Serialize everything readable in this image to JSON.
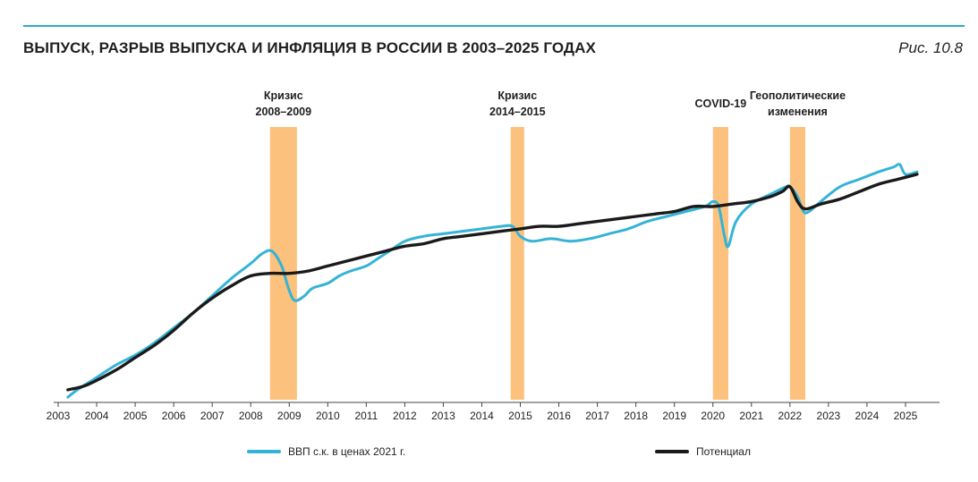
{
  "header": {
    "title": "ВЫПУСК, РАЗРЫВ ВЫПУСКА И ИНФЛЯЦИЯ В РОССИИ В 2003–2025 ГОДАХ",
    "figure_label": "Рис. 10.8"
  },
  "colors": {
    "gdp": "#35b3d6",
    "potential": "#1a1a1a",
    "shade": "#fcc27d",
    "axis": "#444444",
    "rule": "#2fa9c4"
  },
  "legend": {
    "gdp_label": "ВВП с.к. в ценах 2021 г.",
    "potential_label": "Потенциал"
  },
  "chart_data": {
    "type": "line",
    "title": "ВЫПУСК, РАЗРЫВ ВЫПУСКА И ИНФЛЯЦИЯ В РОССИИ В 2003–2025 ГОДАХ",
    "xlabel": "",
    "ylabel": "",
    "xlim": [
      2003,
      2026
    ],
    "ylim": [
      0,
      100
    ],
    "x_ticks": [
      "2003",
      "2004",
      "2005",
      "2006",
      "2007",
      "2008",
      "2009",
      "2010",
      "2011",
      "2012",
      "2013",
      "2014",
      "2015",
      "2016",
      "2017",
      "2018",
      "2019",
      "2020",
      "2021",
      "2022",
      "2023",
      "2024",
      "2025"
    ],
    "shaded_periods": [
      {
        "label_lines": [
          "Кризис",
          "2008–2009"
        ],
        "start": 2008.5,
        "end": 2009.2
      },
      {
        "label_lines": [
          "Кризис",
          "2014–2015"
        ],
        "start": 2014.75,
        "end": 2015.1
      },
      {
        "label_lines": [
          "COVID-19"
        ],
        "start": 2020.0,
        "end": 2020.4
      },
      {
        "label_lines": [
          "Геополитические",
          "изменения"
        ],
        "start": 2022.0,
        "end": 2022.4
      }
    ],
    "series": [
      {
        "name": "ВВП с.к. в ценах 2021 г.",
        "color": "#35b3d6",
        "points": [
          [
            2003.25,
            1
          ],
          [
            2003.5,
            4
          ],
          [
            2004.0,
            9
          ],
          [
            2004.5,
            14
          ],
          [
            2005.0,
            18
          ],
          [
            2005.5,
            23
          ],
          [
            2006.0,
            29
          ],
          [
            2006.5,
            35
          ],
          [
            2007.0,
            42
          ],
          [
            2007.5,
            49
          ],
          [
            2008.0,
            55
          ],
          [
            2008.3,
            59
          ],
          [
            2008.55,
            60
          ],
          [
            2008.8,
            54
          ],
          [
            2009.0,
            44
          ],
          [
            2009.15,
            40
          ],
          [
            2009.4,
            42
          ],
          [
            2009.6,
            45
          ],
          [
            2010.0,
            47
          ],
          [
            2010.3,
            50
          ],
          [
            2010.6,
            52
          ],
          [
            2011.0,
            54
          ],
          [
            2011.3,
            57
          ],
          [
            2011.6,
            60
          ],
          [
            2012.0,
            64
          ],
          [
            2012.5,
            66
          ],
          [
            2013.0,
            67
          ],
          [
            2013.5,
            68
          ],
          [
            2014.0,
            69
          ],
          [
            2014.5,
            70
          ],
          [
            2014.8,
            70
          ],
          [
            2015.0,
            66
          ],
          [
            2015.3,
            64
          ],
          [
            2015.8,
            65
          ],
          [
            2016.3,
            64
          ],
          [
            2016.8,
            65
          ],
          [
            2017.3,
            67
          ],
          [
            2017.8,
            69
          ],
          [
            2018.3,
            72
          ],
          [
            2018.8,
            74
          ],
          [
            2019.3,
            76
          ],
          [
            2019.8,
            78
          ],
          [
            2020.0,
            80
          ],
          [
            2020.15,
            78
          ],
          [
            2020.3,
            66
          ],
          [
            2020.4,
            62
          ],
          [
            2020.6,
            72
          ],
          [
            2021.0,
            79
          ],
          [
            2021.5,
            83
          ],
          [
            2021.9,
            86
          ],
          [
            2022.0,
            86
          ],
          [
            2022.2,
            82
          ],
          [
            2022.35,
            76
          ],
          [
            2022.5,
            76
          ],
          [
            2022.8,
            80
          ],
          [
            2023.3,
            86
          ],
          [
            2023.8,
            89
          ],
          [
            2024.3,
            92
          ],
          [
            2024.7,
            94
          ],
          [
            2024.85,
            95
          ],
          [
            2025.0,
            91
          ],
          [
            2025.3,
            92
          ]
        ]
      },
      {
        "name": "Потенциал",
        "color": "#1a1a1a",
        "points": [
          [
            2003.25,
            4
          ],
          [
            2003.75,
            6
          ],
          [
            2004.5,
            12
          ],
          [
            2005.0,
            17
          ],
          [
            2005.5,
            22
          ],
          [
            2006.0,
            28
          ],
          [
            2006.5,
            35
          ],
          [
            2007.0,
            41
          ],
          [
            2007.5,
            46
          ],
          [
            2008.0,
            50
          ],
          [
            2008.5,
            51
          ],
          [
            2009.0,
            51
          ],
          [
            2009.5,
            52
          ],
          [
            2010.0,
            54
          ],
          [
            2010.5,
            56
          ],
          [
            2011.0,
            58
          ],
          [
            2011.5,
            60
          ],
          [
            2012.0,
            62
          ],
          [
            2012.5,
            63
          ],
          [
            2013.0,
            65
          ],
          [
            2013.5,
            66
          ],
          [
            2014.0,
            67
          ],
          [
            2014.5,
            68
          ],
          [
            2015.0,
            69
          ],
          [
            2015.5,
            70
          ],
          [
            2016.0,
            70
          ],
          [
            2016.5,
            71
          ],
          [
            2017.0,
            72
          ],
          [
            2017.5,
            73
          ],
          [
            2018.0,
            74
          ],
          [
            2018.5,
            75
          ],
          [
            2019.0,
            76
          ],
          [
            2019.5,
            78
          ],
          [
            2020.0,
            78
          ],
          [
            2020.5,
            79
          ],
          [
            2021.0,
            80
          ],
          [
            2021.5,
            82
          ],
          [
            2021.8,
            84
          ],
          [
            2022.0,
            86
          ],
          [
            2022.2,
            80
          ],
          [
            2022.4,
            77
          ],
          [
            2022.8,
            79
          ],
          [
            2023.3,
            81
          ],
          [
            2023.8,
            84
          ],
          [
            2024.3,
            87
          ],
          [
            2024.8,
            89
          ],
          [
            2025.3,
            91
          ]
        ]
      }
    ]
  }
}
